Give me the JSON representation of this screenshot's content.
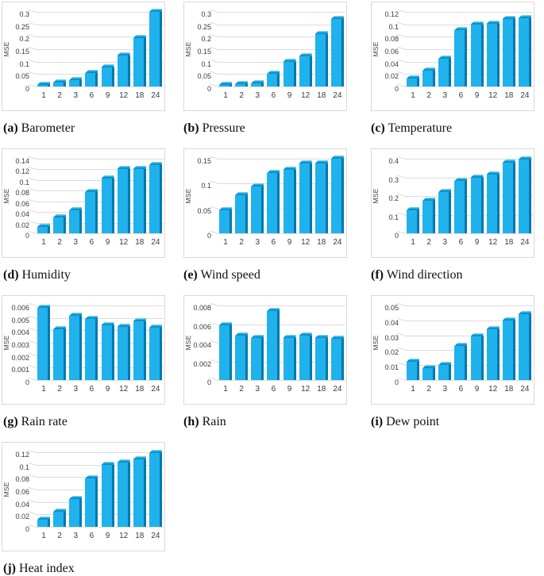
{
  "figure": {
    "ylabel": "MSE",
    "categories": [
      "1",
      "2",
      "3",
      "6",
      "9",
      "12",
      "18",
      "24"
    ]
  },
  "style": {
    "bar_front": "#1FB2EC",
    "bar_side": "#0478B0",
    "bar_cap_dark": "#0A92CE",
    "bar_cap_light": "#70CEEC",
    "grid_color": "#DCDCDC",
    "panel_border": "#D9D9D9",
    "axis_text": "#3B3B3B",
    "caption_text": "#111111"
  },
  "chart_data": [
    {
      "id": "a",
      "type": "bar",
      "caption_label": "(a)",
      "caption_title": "Barometer",
      "ylabel": "MSE",
      "categories": [
        "1",
        "2",
        "3",
        "6",
        "9",
        "12",
        "18",
        "24"
      ],
      "values": [
        0.005,
        0.015,
        0.025,
        0.055,
        0.075,
        0.125,
        0.195,
        0.3
      ],
      "ylim": [
        0,
        0.3
      ],
      "yticks": [
        "0",
        "0.05",
        "0.1",
        "0.15",
        "0.2",
        "0.25",
        "0.3"
      ]
    },
    {
      "id": "b",
      "type": "bar",
      "caption_label": "(b)",
      "caption_title": "Pressure",
      "ylabel": "MSE",
      "categories": [
        "1",
        "2",
        "3",
        "6",
        "9",
        "12",
        "18",
        "24"
      ],
      "values": [
        0.005,
        0.01,
        0.013,
        0.05,
        0.1,
        0.12,
        0.21,
        0.27
      ],
      "ylim": [
        0,
        0.3
      ],
      "yticks": [
        "0",
        "0.05",
        "0.1",
        "0.15",
        "0.2",
        "0.25",
        "0.3"
      ]
    },
    {
      "id": "c",
      "type": "bar",
      "caption_label": "(c)",
      "caption_title": "Temperature",
      "ylabel": "MSE",
      "categories": [
        "1",
        "2",
        "3",
        "6",
        "9",
        "12",
        "18",
        "24"
      ],
      "values": [
        0.013,
        0.025,
        0.045,
        0.09,
        0.1,
        0.101,
        0.108,
        0.11
      ],
      "ylim": [
        0,
        0.12
      ],
      "yticks": [
        "0",
        "0.02",
        "0.04",
        "0.06",
        "0.08",
        "0.1",
        "0.12"
      ]
    },
    {
      "id": "d",
      "type": "bar",
      "caption_label": "(d)",
      "caption_title": "Humidity",
      "ylabel": "MSE",
      "categories": [
        "1",
        "2",
        "3",
        "6",
        "9",
        "12",
        "18",
        "24"
      ],
      "values": [
        0.012,
        0.03,
        0.043,
        0.078,
        0.103,
        0.12,
        0.12,
        0.128
      ],
      "ylim": [
        0,
        0.14
      ],
      "yticks": [
        "0",
        "0.02",
        "0.04",
        "0.06",
        "0.08",
        "0.1",
        "0.12",
        "0.14"
      ]
    },
    {
      "id": "e",
      "type": "bar",
      "caption_label": "(e)",
      "caption_title": "Wind speed",
      "ylabel": "MSE",
      "categories": [
        "1",
        "2",
        "3",
        "6",
        "9",
        "12",
        "18",
        "24"
      ],
      "values": [
        0.046,
        0.077,
        0.094,
        0.121,
        0.127,
        0.141,
        0.14,
        0.15
      ],
      "ylim": [
        0,
        0.15
      ],
      "yticks": [
        "0",
        "0.05",
        "0.1",
        "0.15"
      ]
    },
    {
      "id": "f",
      "type": "bar",
      "caption_label": "(f)",
      "caption_title": "Wind direction",
      "ylabel": "MSE",
      "categories": [
        "1",
        "2",
        "3",
        "6",
        "9",
        "12",
        "18",
        "24"
      ],
      "values": [
        0.125,
        0.175,
        0.22,
        0.28,
        0.3,
        0.315,
        0.38,
        0.395
      ],
      "ylim": [
        0,
        0.4
      ],
      "yticks": [
        "0",
        "0.1",
        "0.2",
        "0.3",
        "0.4"
      ]
    },
    {
      "id": "g",
      "type": "bar",
      "caption_label": "(g)",
      "caption_title": "Rain rate",
      "ylabel": "MSE",
      "categories": [
        "1",
        "2",
        "3",
        "6",
        "9",
        "12",
        "18",
        "24"
      ],
      "values": [
        0.0058,
        0.0041,
        0.0052,
        0.0049,
        0.0044,
        0.0043,
        0.0047,
        0.0042
      ],
      "ylim": [
        0,
        0.006
      ],
      "yticks": [
        "0",
        "0.001",
        "0.002",
        "0.003",
        "0.004",
        "0.005",
        "0.006"
      ]
    },
    {
      "id": "h",
      "type": "bar",
      "caption_label": "(h)",
      "caption_title": "Rain",
      "ylabel": "MSE",
      "categories": [
        "1",
        "2",
        "3",
        "6",
        "9",
        "12",
        "18",
        "24"
      ],
      "values": [
        0.0059,
        0.0048,
        0.0045,
        0.0074,
        0.0045,
        0.0048,
        0.0045,
        0.0044
      ],
      "ylim": [
        0,
        0.008
      ],
      "yticks": [
        "0",
        "0.002",
        "0.004",
        "0.006",
        "0.008"
      ]
    },
    {
      "id": "i",
      "type": "bar",
      "caption_label": "(i)",
      "caption_title": "Dew point",
      "ylabel": "MSE",
      "categories": [
        "1",
        "2",
        "3",
        "6",
        "9",
        "12",
        "18",
        "24"
      ],
      "values": [
        0.012,
        0.008,
        0.01,
        0.023,
        0.029,
        0.034,
        0.04,
        0.044
      ],
      "ylim": [
        0,
        0.05
      ],
      "yticks": [
        "0",
        "0.01",
        "0.02",
        "0.03",
        "0.04",
        "0.05"
      ]
    },
    {
      "id": "j",
      "type": "bar",
      "caption_label": "(j)",
      "caption_title": "Heat index",
      "ylabel": "MSE",
      "categories": [
        "1",
        "2",
        "3",
        "6",
        "9",
        "12",
        "18",
        "24"
      ],
      "values": [
        0.012,
        0.024,
        0.045,
        0.078,
        0.099,
        0.103,
        0.108,
        0.119
      ],
      "ylim": [
        0,
        0.12
      ],
      "yticks": [
        "0",
        "0.02",
        "0.04",
        "0.06",
        "0.08",
        "0.1",
        "0.12"
      ]
    }
  ]
}
